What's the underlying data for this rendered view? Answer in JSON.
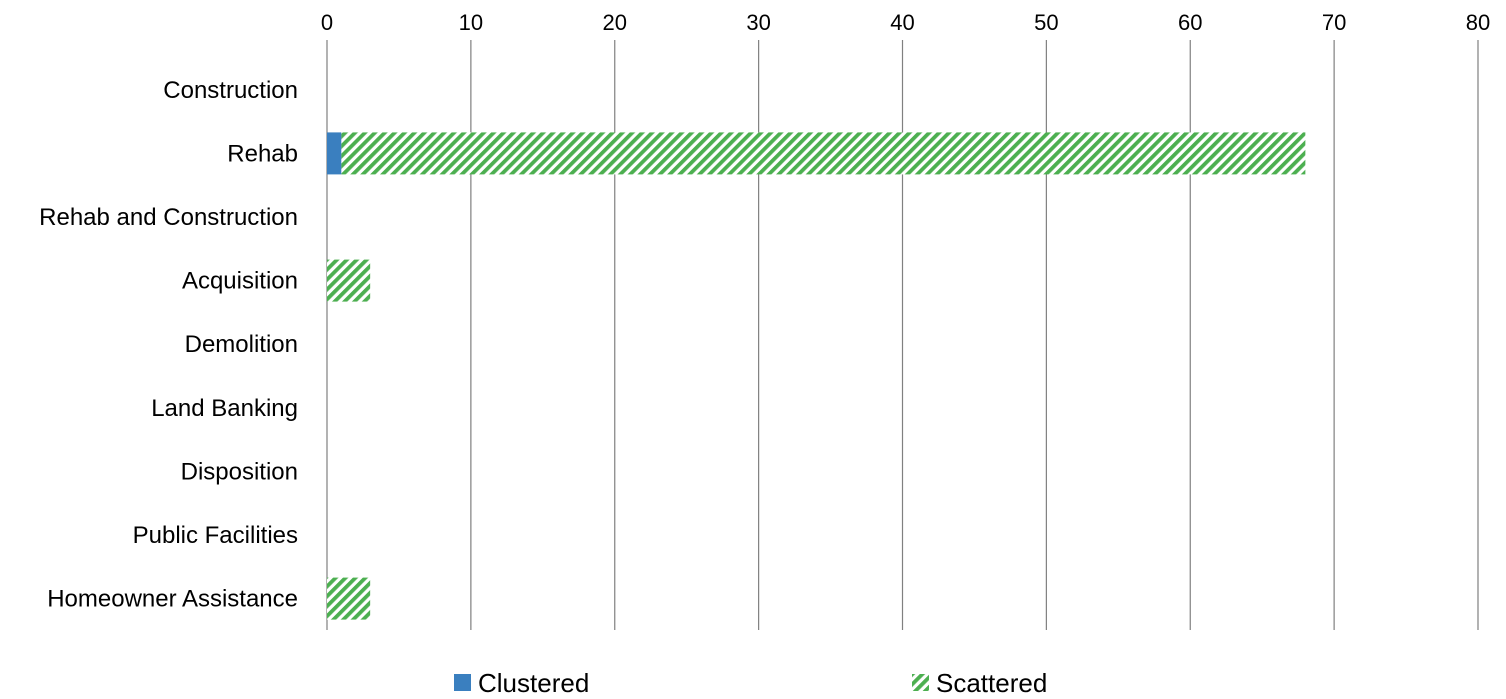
{
  "chart_data": {
    "type": "bar",
    "orientation": "horizontal",
    "stacked": true,
    "categories": [
      "Construction",
      "Rehab",
      "Rehab and Construction",
      "Acquisition",
      "Demolition",
      "Land Banking",
      "Disposition",
      "Public Facilities",
      "Homeowner Assistance"
    ],
    "series": [
      {
        "name": "Clustered",
        "values": [
          0,
          1,
          0,
          0,
          0,
          0,
          0,
          0,
          0
        ],
        "color": "#3a7fbf",
        "pattern": "solid"
      },
      {
        "name": "Scattered",
        "values": [
          0,
          67,
          0,
          3,
          0,
          0,
          0,
          0,
          3
        ],
        "color": "#4caf50",
        "pattern": "diagonal-stripes"
      }
    ],
    "xlim": [
      0,
      80
    ],
    "xticks": [
      0,
      10,
      20,
      30,
      40,
      50,
      60,
      70,
      80
    ],
    "x_axis_position": "top",
    "grid": true,
    "legend_position": "bottom",
    "title": "",
    "xlabel": "",
    "ylabel": ""
  }
}
